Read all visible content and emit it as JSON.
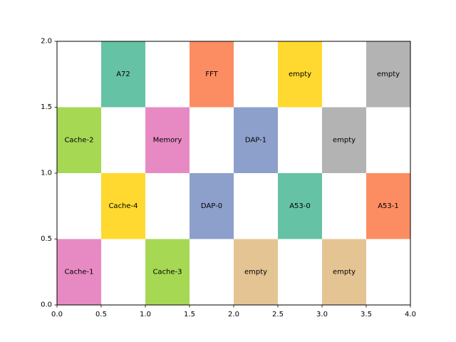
{
  "chart_data": {
    "type": "heatmap",
    "title": "",
    "xlabel": "",
    "ylabel": "",
    "xlim": [
      0,
      4
    ],
    "ylim": [
      0,
      2
    ],
    "grid": false,
    "x_ticks": [
      "0.0",
      "0.5",
      "1.0",
      "1.5",
      "2.0",
      "2.5",
      "3.0",
      "3.5",
      "4.0"
    ],
    "y_ticks": [
      "0.0",
      "0.5",
      "1.0",
      "1.5",
      "2.0"
    ],
    "cell_width": 0.5,
    "cell_height": 0.5,
    "cells": [
      {
        "x": 0.0,
        "y": 0.0,
        "label": "Cache-1",
        "color": "#e78ac3"
      },
      {
        "x": 1.0,
        "y": 0.0,
        "label": "Cache-3",
        "color": "#a6d854"
      },
      {
        "x": 2.0,
        "y": 0.0,
        "label": "empty",
        "color": "#e5c494"
      },
      {
        "x": 3.0,
        "y": 0.0,
        "label": "empty",
        "color": "#e5c494"
      },
      {
        "x": 0.5,
        "y": 0.5,
        "label": "Cache-4",
        "color": "#ffd92f"
      },
      {
        "x": 1.5,
        "y": 0.5,
        "label": "DAP-0",
        "color": "#8da0cb"
      },
      {
        "x": 2.5,
        "y": 0.5,
        "label": "A53-0",
        "color": "#66c2a5"
      },
      {
        "x": 3.5,
        "y": 0.5,
        "label": "A53-1",
        "color": "#fc8d62"
      },
      {
        "x": 0.0,
        "y": 1.0,
        "label": "Cache-2",
        "color": "#a6d854"
      },
      {
        "x": 1.0,
        "y": 1.0,
        "label": "Memory",
        "color": "#e78ac3"
      },
      {
        "x": 2.0,
        "y": 1.0,
        "label": "DAP-1",
        "color": "#8da0cb"
      },
      {
        "x": 3.0,
        "y": 1.0,
        "label": "empty",
        "color": "#b3b3b3"
      },
      {
        "x": 0.5,
        "y": 1.5,
        "label": "A72",
        "color": "#66c2a5"
      },
      {
        "x": 1.5,
        "y": 1.5,
        "label": "FFT",
        "color": "#fc8d62"
      },
      {
        "x": 2.5,
        "y": 1.5,
        "label": "empty",
        "color": "#ffd92f"
      },
      {
        "x": 3.5,
        "y": 1.5,
        "label": "empty",
        "color": "#b3b3b3"
      }
    ]
  }
}
